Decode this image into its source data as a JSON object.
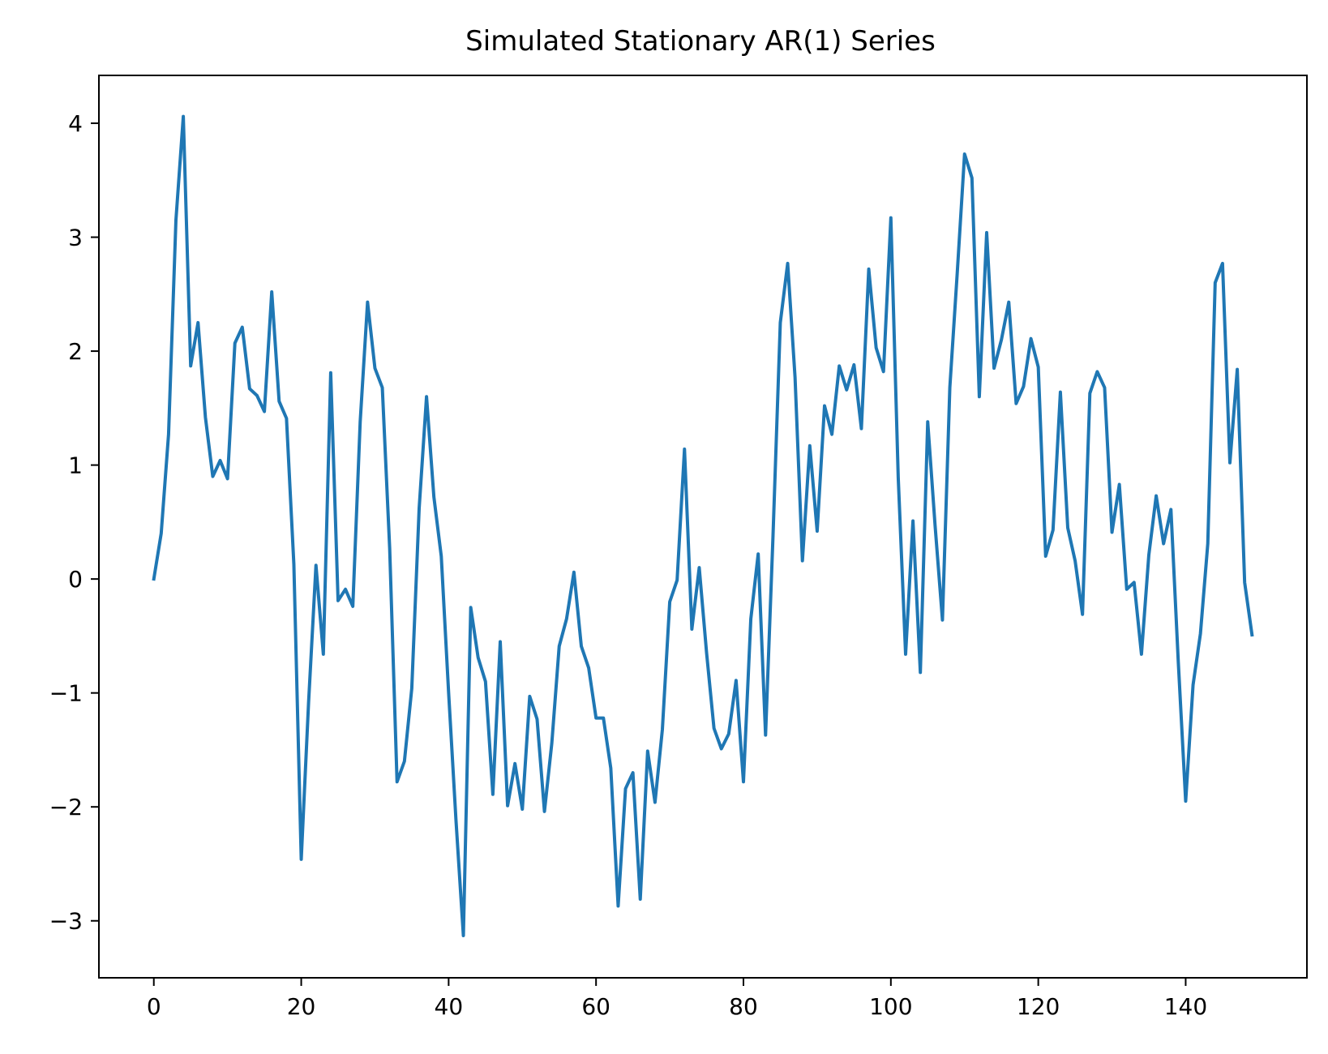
{
  "chart_data": {
    "type": "line",
    "title": "Simulated Stationary AR(1) Series",
    "xlabel": "",
    "ylabel": "",
    "xlim": [
      -7.45,
      156.45
    ],
    "ylim": [
      -3.5,
      4.42
    ],
    "xticks": [
      0,
      20,
      40,
      60,
      80,
      100,
      120,
      140
    ],
    "xtick_labels": [
      "0",
      "20",
      "40",
      "60",
      "80",
      "100",
      "120",
      "140"
    ],
    "yticks": [
      -3,
      -2,
      -1,
      0,
      1,
      2,
      3,
      4
    ],
    "ytick_labels": [
      "−3",
      "−2",
      "−1",
      "0",
      "1",
      "2",
      "3",
      "4"
    ],
    "grid": false,
    "line_color": "#1f77b4",
    "series": [
      {
        "x_start": 0,
        "values": [
          0.0,
          0.4,
          1.27,
          3.15,
          4.06,
          1.87,
          2.25,
          1.42,
          0.9,
          1.04,
          0.88,
          2.07,
          2.21,
          1.67,
          1.61,
          1.47,
          2.52,
          1.56,
          1.41,
          0.13,
          -2.46,
          -1.08,
          0.12,
          -0.66,
          1.81,
          -0.19,
          -0.09,
          -0.24,
          1.38,
          2.43,
          1.85,
          1.68,
          0.27,
          -1.78,
          -1.6,
          -0.96,
          0.62,
          1.6,
          0.72,
          0.2,
          -1.0,
          -2.12,
          -3.13,
          -0.25,
          -0.69,
          -0.9,
          -1.89,
          -0.55,
          -1.99,
          -1.62,
          -2.02,
          -1.03,
          -1.23,
          -2.04,
          -1.44,
          -0.59,
          -0.35,
          0.06,
          -0.59,
          -0.78,
          -1.22,
          -1.22,
          -1.66,
          -2.87,
          -1.84,
          -1.7,
          -2.81,
          -1.51,
          -1.96,
          -1.32,
          -0.2,
          -0.01,
          1.14,
          -0.44,
          0.1,
          -0.65,
          -1.31,
          -1.49,
          -1.36,
          -0.89,
          -1.78,
          -0.35,
          0.22,
          -1.37,
          0.36,
          2.25,
          2.77,
          1.77,
          0.16,
          1.17,
          0.42,
          1.52,
          1.27,
          1.87,
          1.66,
          1.88,
          1.32,
          2.72,
          2.03,
          1.82,
          3.17,
          0.89,
          -0.66,
          0.51,
          -0.82,
          1.38,
          0.47,
          -0.36,
          1.68,
          2.68,
          3.73,
          3.52,
          1.6,
          3.04,
          1.85,
          2.1,
          2.43,
          1.54,
          1.69,
          2.11,
          1.86,
          0.2,
          0.43,
          1.64,
          0.45,
          0.16,
          -0.31,
          1.63,
          1.82,
          1.68,
          0.41,
          0.83,
          -0.09,
          -0.03,
          -0.66,
          0.21,
          0.73,
          0.31,
          0.61,
          -0.73,
          -1.95,
          -0.93,
          -0.48,
          0.31,
          2.6,
          2.77,
          1.02,
          1.84,
          -0.03,
          -0.49
        ]
      }
    ]
  }
}
